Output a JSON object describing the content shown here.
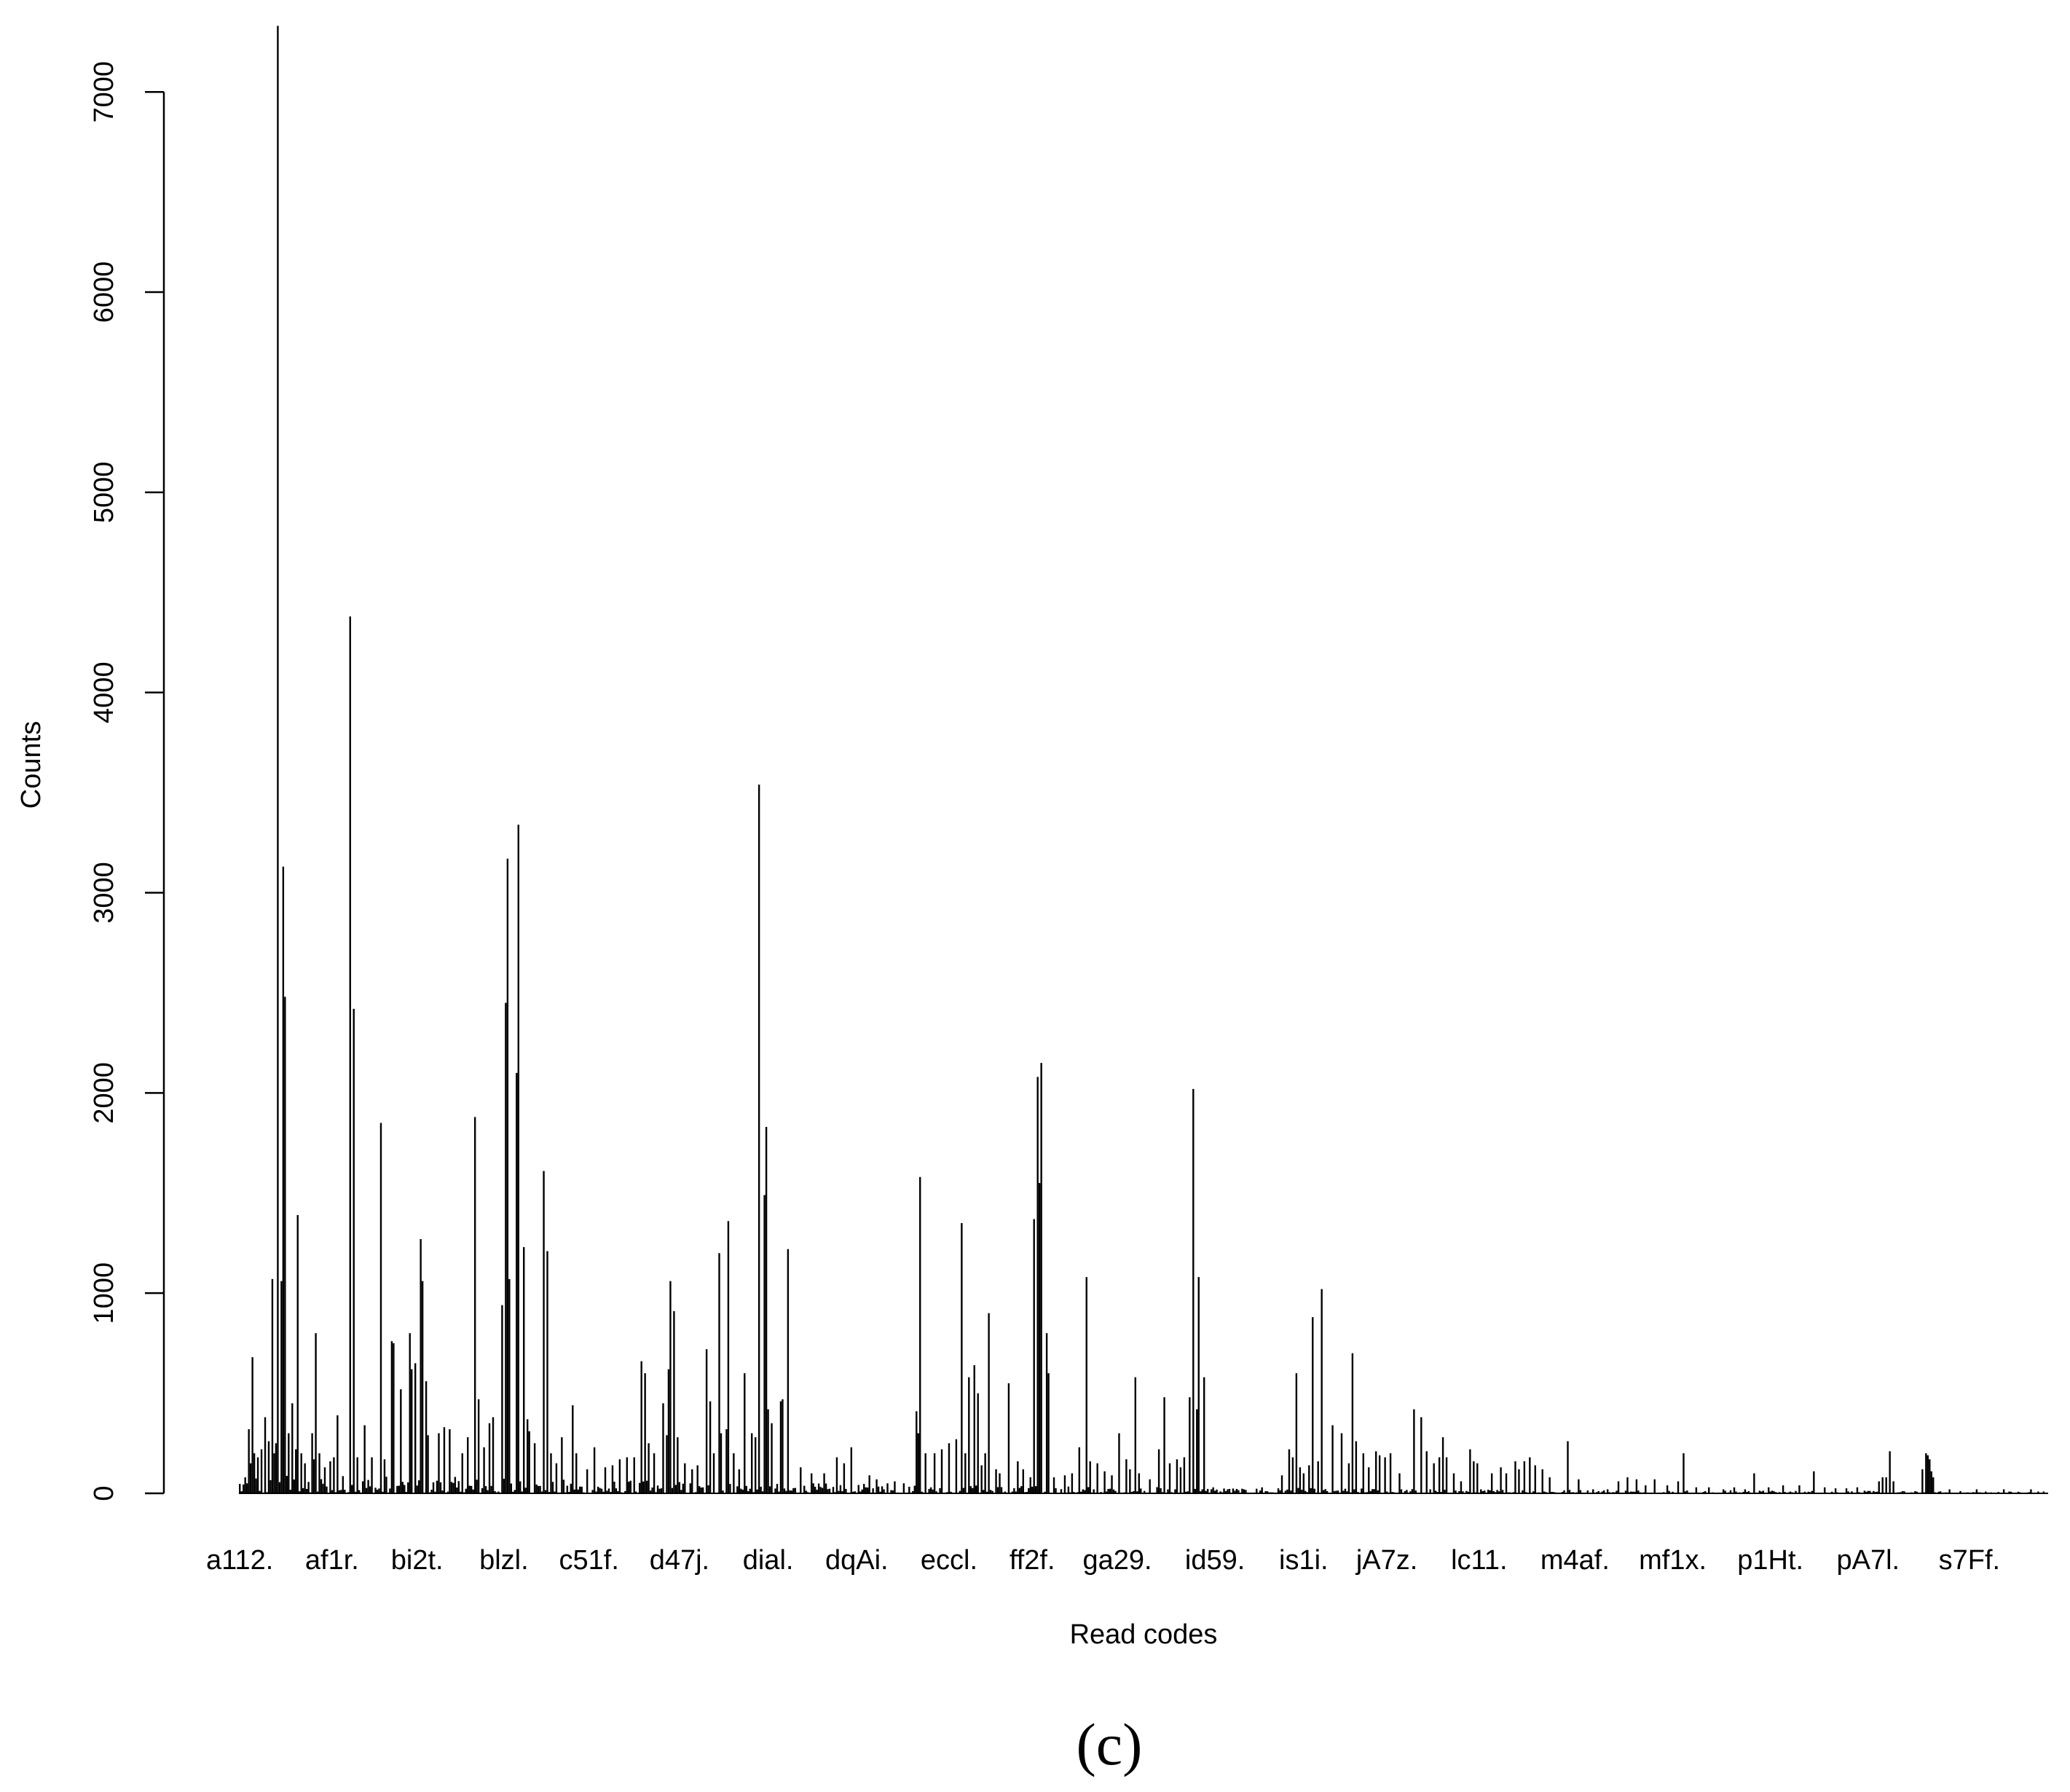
{
  "chart_data": {
    "type": "bar",
    "title": "",
    "xlabel": "Read codes",
    "ylabel": "Counts",
    "panel_label": "(c)",
    "ylim": [
      0,
      7350
    ],
    "yticks": [
      0,
      1000,
      2000,
      3000,
      4000,
      5000,
      6000,
      7000
    ],
    "grid": false,
    "legend": "none",
    "bar_color": "#000000",
    "n_codes": 1000,
    "tick_labels": [
      {
        "index": 0,
        "label": "a112."
      },
      {
        "index": 51,
        "label": "af1r."
      },
      {
        "index": 98,
        "label": "bi2t."
      },
      {
        "index": 146,
        "label": "blzl."
      },
      {
        "index": 193,
        "label": "c51f."
      },
      {
        "index": 243,
        "label": "d47j."
      },
      {
        "index": 292,
        "label": "dial."
      },
      {
        "index": 341,
        "label": "dqAi."
      },
      {
        "index": 392,
        "label": "eccl."
      },
      {
        "index": 438,
        "label": "ff2f."
      },
      {
        "index": 485,
        "label": "ga29."
      },
      {
        "index": 539,
        "label": "id59."
      },
      {
        "index": 588,
        "label": "is1i."
      },
      {
        "index": 634,
        "label": "jA7z."
      },
      {
        "index": 685,
        "label": "lc11."
      },
      {
        "index": 738,
        "label": "m4af."
      },
      {
        "index": 792,
        "label": "mf1x."
      },
      {
        "index": 846,
        "label": "p1Ht."
      },
      {
        "index": 900,
        "label": "pA7l."
      },
      {
        "index": 956,
        "label": "s7Ff."
      }
    ],
    "peaks": [
      [
        3,
        80
      ],
      [
        5,
        320
      ],
      [
        6,
        150
      ],
      [
        7,
        680
      ],
      [
        8,
        200
      ],
      [
        10,
        180
      ],
      [
        12,
        220
      ],
      [
        14,
        380
      ],
      [
        16,
        260
      ],
      [
        18,
        1070
      ],
      [
        19,
        200
      ],
      [
        20,
        250
      ],
      [
        21,
        7330
      ],
      [
        23,
        1060
      ],
      [
        24,
        3130
      ],
      [
        25,
        2480
      ],
      [
        27,
        300
      ],
      [
        29,
        450
      ],
      [
        31,
        220
      ],
      [
        32,
        1390
      ],
      [
        34,
        200
      ],
      [
        36,
        150
      ],
      [
        40,
        300
      ],
      [
        41,
        170
      ],
      [
        42,
        800
      ],
      [
        44,
        200
      ],
      [
        47,
        130
      ],
      [
        50,
        160
      ],
      [
        52,
        180
      ],
      [
        54,
        390
      ],
      [
        61,
        4380
      ],
      [
        63,
        2420
      ],
      [
        65,
        180
      ],
      [
        69,
        340
      ],
      [
        73,
        180
      ],
      [
        78,
        1850
      ],
      [
        80,
        170
      ],
      [
        84,
        760
      ],
      [
        85,
        750
      ],
      [
        89,
        520
      ],
      [
        94,
        800
      ],
      [
        95,
        620
      ],
      [
        97,
        650
      ],
      [
        100,
        1270
      ],
      [
        101,
        1060
      ],
      [
        103,
        560
      ],
      [
        104,
        290
      ],
      [
        110,
        300
      ],
      [
        113,
        330
      ],
      [
        116,
        320
      ],
      [
        123,
        200
      ],
      [
        126,
        280
      ],
      [
        130,
        1880
      ],
      [
        132,
        470
      ],
      [
        135,
        230
      ],
      [
        138,
        350
      ],
      [
        140,
        380
      ],
      [
        145,
        940
      ],
      [
        147,
        2450
      ],
      [
        148,
        3170
      ],
      [
        149,
        1070
      ],
      [
        153,
        2100
      ],
      [
        154,
        3340
      ],
      [
        157,
        1230
      ],
      [
        159,
        370
      ],
      [
        160,
        310
      ],
      [
        163,
        250
      ],
      [
        168,
        1610
      ],
      [
        170,
        1210
      ],
      [
        172,
        200
      ],
      [
        175,
        150
      ],
      [
        178,
        280
      ],
      [
        184,
        440
      ],
      [
        186,
        200
      ],
      [
        192,
        120
      ],
      [
        196,
        230
      ],
      [
        202,
        130
      ],
      [
        206,
        140
      ],
      [
        210,
        170
      ],
      [
        214,
        180
      ],
      [
        218,
        180
      ],
      [
        222,
        660
      ],
      [
        224,
        600
      ],
      [
        226,
        250
      ],
      [
        229,
        200
      ],
      [
        234,
        450
      ],
      [
        236,
        290
      ],
      [
        237,
        620
      ],
      [
        238,
        1060
      ],
      [
        240,
        910
      ],
      [
        242,
        280
      ],
      [
        246,
        150
      ],
      [
        250,
        120
      ],
      [
        253,
        140
      ],
      [
        258,
        720
      ],
      [
        260,
        460
      ],
      [
        262,
        200
      ],
      [
        265,
        1200
      ],
      [
        266,
        300
      ],
      [
        269,
        320
      ],
      [
        270,
        1360
      ],
      [
        273,
        200
      ],
      [
        276,
        120
      ],
      [
        279,
        600
      ],
      [
        283,
        300
      ],
      [
        285,
        280
      ],
      [
        287,
        3540
      ],
      [
        290,
        1490
      ],
      [
        291,
        1830
      ],
      [
        292,
        420
      ],
      [
        294,
        350
      ],
      [
        299,
        460
      ],
      [
        300,
        470
      ],
      [
        303,
        1220
      ],
      [
        310,
        130
      ],
      [
        316,
        100
      ],
      [
        323,
        100
      ],
      [
        330,
        180
      ],
      [
        334,
        150
      ],
      [
        338,
        230
      ],
      [
        348,
        90
      ],
      [
        352,
        70
      ],
      [
        358,
        50
      ],
      [
        362,
        60
      ],
      [
        367,
        50
      ],
      [
        374,
        410
      ],
      [
        375,
        300
      ],
      [
        376,
        1580
      ],
      [
        379,
        200
      ],
      [
        384,
        200
      ],
      [
        388,
        220
      ],
      [
        392,
        250
      ],
      [
        396,
        270
      ],
      [
        399,
        1350
      ],
      [
        401,
        200
      ],
      [
        403,
        580
      ],
      [
        406,
        640
      ],
      [
        408,
        500
      ],
      [
        410,
        140
      ],
      [
        412,
        200
      ],
      [
        414,
        900
      ],
      [
        418,
        120
      ],
      [
        420,
        100
      ],
      [
        425,
        550
      ],
      [
        430,
        160
      ],
      [
        433,
        120
      ],
      [
        437,
        80
      ],
      [
        439,
        1370
      ],
      [
        441,
        2080
      ],
      [
        442,
        1550
      ],
      [
        443,
        2150
      ],
      [
        446,
        800
      ],
      [
        447,
        600
      ],
      [
        450,
        80
      ],
      [
        456,
        90
      ],
      [
        460,
        100
      ],
      [
        464,
        230
      ],
      [
        468,
        1080
      ],
      [
        470,
        160
      ],
      [
        474,
        150
      ],
      [
        478,
        110
      ],
      [
        482,
        90
      ],
      [
        486,
        300
      ],
      [
        490,
        170
      ],
      [
        492,
        120
      ],
      [
        495,
        580
      ],
      [
        497,
        100
      ],
      [
        503,
        70
      ],
      [
        508,
        220
      ],
      [
        511,
        480
      ],
      [
        514,
        150
      ],
      [
        518,
        170
      ],
      [
        520,
        130
      ],
      [
        522,
        180
      ],
      [
        525,
        480
      ],
      [
        527,
        2020
      ],
      [
        529,
        420
      ],
      [
        530,
        1080
      ],
      [
        533,
        580
      ],
      [
        538,
        30
      ],
      [
        546,
        20
      ],
      [
        555,
        20
      ],
      [
        565,
        30
      ],
      [
        576,
        90
      ],
      [
        580,
        220
      ],
      [
        582,
        180
      ],
      [
        584,
        600
      ],
      [
        586,
        130
      ],
      [
        588,
        100
      ],
      [
        591,
        140
      ],
      [
        593,
        880
      ],
      [
        596,
        160
      ],
      [
        598,
        1020
      ],
      [
        604,
        340
      ],
      [
        609,
        300
      ],
      [
        613,
        150
      ],
      [
        615,
        700
      ],
      [
        617,
        260
      ],
      [
        621,
        200
      ],
      [
        624,
        130
      ],
      [
        628,
        210
      ],
      [
        630,
        190
      ],
      [
        633,
        180
      ],
      [
        636,
        200
      ],
      [
        641,
        100
      ],
      [
        649,
        420
      ],
      [
        653,
        380
      ],
      [
        656,
        210
      ],
      [
        660,
        150
      ],
      [
        663,
        180
      ],
      [
        665,
        280
      ],
      [
        667,
        180
      ],
      [
        671,
        100
      ],
      [
        675,
        60
      ],
      [
        680,
        220
      ],
      [
        682,
        160
      ],
      [
        684,
        150
      ],
      [
        692,
        100
      ],
      [
        697,
        130
      ],
      [
        700,
        100
      ],
      [
        705,
        160
      ],
      [
        707,
        120
      ],
      [
        710,
        160
      ],
      [
        713,
        180
      ],
      [
        716,
        140
      ],
      [
        720,
        120
      ],
      [
        724,
        80
      ],
      [
        734,
        260
      ],
      [
        740,
        70
      ],
      [
        748,
        20
      ],
      [
        756,
        20
      ],
      [
        762,
        60
      ],
      [
        767,
        80
      ],
      [
        772,
        70
      ],
      [
        777,
        40
      ],
      [
        782,
        70
      ],
      [
        789,
        40
      ],
      [
        795,
        60
      ],
      [
        798,
        200
      ],
      [
        805,
        30
      ],
      [
        812,
        30
      ],
      [
        820,
        20
      ],
      [
        826,
        30
      ],
      [
        832,
        20
      ],
      [
        837,
        100
      ],
      [
        845,
        30
      ],
      [
        853,
        40
      ],
      [
        862,
        40
      ],
      [
        870,
        110
      ],
      [
        876,
        30
      ],
      [
        882,
        25
      ],
      [
        888,
        25
      ],
      [
        894,
        30
      ],
      [
        906,
        60
      ],
      [
        908,
        80
      ],
      [
        910,
        80
      ],
      [
        912,
        210
      ],
      [
        914,
        60
      ],
      [
        930,
        120
      ],
      [
        932,
        200
      ],
      [
        933,
        190
      ],
      [
        934,
        170
      ],
      [
        935,
        110
      ],
      [
        936,
        80
      ],
      [
        945,
        20
      ],
      [
        960,
        20
      ],
      [
        975,
        20
      ],
      [
        990,
        20
      ]
    ]
  }
}
